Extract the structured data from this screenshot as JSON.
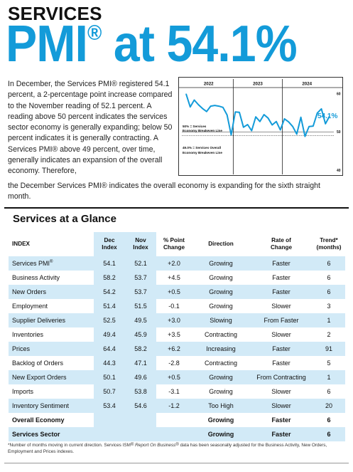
{
  "header": {
    "kicker": "SERVICES",
    "headline_pre": "PMI",
    "headline_reg": "®",
    "headline_post": " at 54.1%"
  },
  "intro": {
    "narrow": "In December, the Services PMI® registered 54.1 percent, a 2-percentage point increase compared to the November reading of 52.1 percent. A reading above 50 percent indicates the services sector economy is generally expanding; below 50 percent indicates it is generally contracting. A Services PMI® above 49 percent, over time, generally indicates an expansion of the overall economy. Therefore,",
    "wide": "the December Services PMI® indicates the overall economy is expanding for the sixth straight month."
  },
  "chart": {
    "callout": "54.1%",
    "breakeven_label_1": "50% = Services",
    "breakeven_label_2": "Economy Breakeven Line",
    "overall_label_1": "49.0% = Services Overall",
    "overall_label_2": "Economy Breakeven Line",
    "colors": {
      "line": "#139bd9",
      "callout": "#139bd9",
      "text": "#111111"
    }
  },
  "chart_data": {
    "type": "line",
    "title": "",
    "xlabel": "",
    "ylabel": "",
    "years": [
      "2022",
      "2023",
      "2024"
    ],
    "yticks": [
      40,
      50,
      60
    ],
    "ylim": [
      40,
      61
    ],
    "reference_lines": [
      50,
      49
    ],
    "series": [
      {
        "values": [
          59.9,
          56.5,
          58.3,
          57.1,
          56.1,
          55.3,
          56.7,
          56.9,
          56.7,
          56.4,
          54.4,
          49.2,
          55.2,
          55.1,
          51.2,
          51.9,
          50.3,
          53.9,
          52.7,
          54.5,
          53.6,
          51.8,
          52.7,
          50.5,
          53.4,
          52.6,
          51.4,
          49.4,
          53.8,
          48.8,
          51.4,
          51.5,
          54.9,
          56.0,
          52.1,
          54.1
        ]
      }
    ]
  },
  "glance": {
    "title": "Services at a Glance",
    "headers": {
      "index": "INDEX",
      "dec_1": "Dec",
      "dec_2": "Index",
      "nov_1": "Nov",
      "nov_2": "Index",
      "chg_1": "% Point",
      "chg_2": "Change",
      "dir": "Direction",
      "rate_1": "Rate of",
      "rate_2": "Change",
      "trend_1": "Trend*",
      "trend_2": "(months)"
    },
    "rows": [
      {
        "index": "Services PMI",
        "reg": "®",
        "dec": "54.1",
        "nov": "52.1",
        "chg": "+2.0",
        "dir": "Growing",
        "rate": "Faster",
        "trend": "6"
      },
      {
        "index": "Business Activity",
        "reg": "",
        "dec": "58.2",
        "nov": "53.7",
        "chg": "+4.5",
        "dir": "Growing",
        "rate": "Faster",
        "trend": "6"
      },
      {
        "index": "New Orders",
        "reg": "",
        "dec": "54.2",
        "nov": "53.7",
        "chg": "+0.5",
        "dir": "Growing",
        "rate": "Faster",
        "trend": "6"
      },
      {
        "index": "Employment",
        "reg": "",
        "dec": "51.4",
        "nov": "51.5",
        "chg": "-0.1",
        "dir": "Growing",
        "rate": "Slower",
        "trend": "3"
      },
      {
        "index": "Supplier Deliveries",
        "reg": "",
        "dec": "52.5",
        "nov": "49.5",
        "chg": "+3.0",
        "dir": "Slowing",
        "rate": "From Faster",
        "trend": "1"
      },
      {
        "index": "Inventories",
        "reg": "",
        "dec": "49.4",
        "nov": "45.9",
        "chg": "+3.5",
        "dir": "Contracting",
        "rate": "Slower",
        "trend": "2"
      },
      {
        "index": "Prices",
        "reg": "",
        "dec": "64.4",
        "nov": "58.2",
        "chg": "+6.2",
        "dir": "Increasing",
        "rate": "Faster",
        "trend": "91"
      },
      {
        "index": "Backlog of Orders",
        "reg": "",
        "dec": "44.3",
        "nov": "47.1",
        "chg": "-2.8",
        "dir": "Contracting",
        "rate": "Faster",
        "trend": "5"
      },
      {
        "index": "New Export Orders",
        "reg": "",
        "dec": "50.1",
        "nov": "49.6",
        "chg": "+0.5",
        "dir": "Growing",
        "rate": "From Contracting",
        "trend": "1"
      },
      {
        "index": "Imports",
        "reg": "",
        "dec": "50.7",
        "nov": "53.8",
        "chg": "-3.1",
        "dir": "Growing",
        "rate": "Slower",
        "trend": "6"
      },
      {
        "index": "Inventory Sentiment",
        "reg": "",
        "dec": "53.4",
        "nov": "54.6",
        "chg": "-1.2",
        "dir": "Too High",
        "rate": "Slower",
        "trend": "20"
      }
    ],
    "summary": [
      {
        "index": "Overall Economy",
        "dir": "Growing",
        "rate": "Faster",
        "trend": "6"
      },
      {
        "index": "Services Sector",
        "dir": "Growing",
        "rate": "Faster",
        "trend": "6"
      }
    ]
  },
  "footnote": {
    "part1": "*Number of months moving in current direction. Services ISM",
    "reg": "®",
    "part2": " ",
    "italic": "Report On Business",
    "reg2": "®",
    "part3": " data has been seasonally adjusted for the Business Activity, New Orders, Employment and Prices indexes."
  }
}
